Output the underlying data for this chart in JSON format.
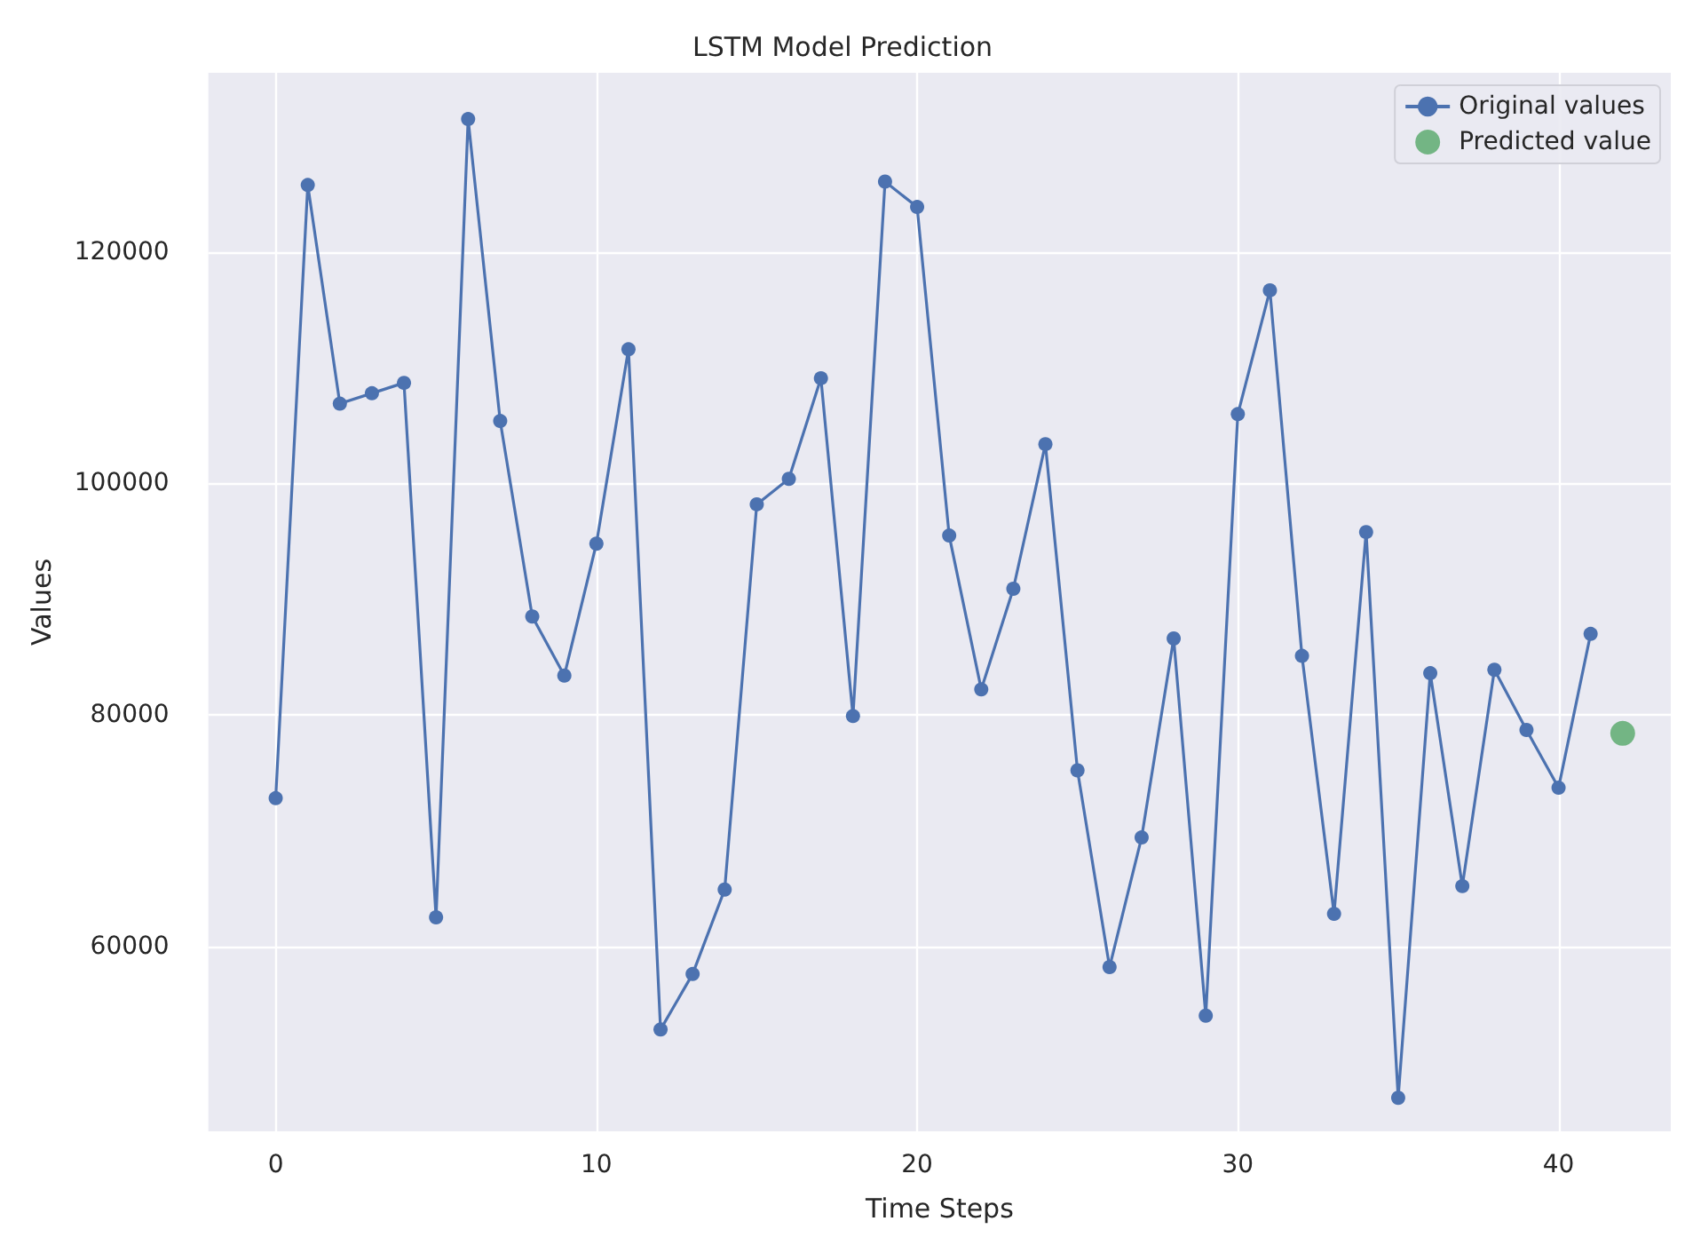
{
  "chart_data": {
    "type": "line",
    "title": "LSTM Model Prediction",
    "xlabel": "Time Steps",
    "ylabel": "Values",
    "xlim": [
      -2.1,
      43.5
    ],
    "xticks": [
      0,
      10,
      20,
      30,
      40
    ],
    "ylim": [
      44000,
      135500
    ],
    "yticks": [
      60000,
      80000,
      100000,
      120000
    ],
    "grid": true,
    "legend": "top right",
    "series": [
      {
        "name": "Original values",
        "color": "#4c72b0",
        "marker": "circle",
        "x": [
          0,
          1,
          2,
          3,
          4,
          5,
          6,
          7,
          8,
          9,
          10,
          11,
          12,
          13,
          14,
          15,
          16,
          17,
          18,
          19,
          20,
          21,
          22,
          23,
          24,
          25,
          26,
          27,
          28,
          29,
          30,
          31,
          32,
          33,
          34,
          35,
          36,
          37,
          38,
          39,
          40,
          41
        ],
        "values": [
          72800,
          125800,
          106900,
          107800,
          108700,
          62500,
          131500,
          105400,
          88500,
          83400,
          94800,
          111600,
          52800,
          57600,
          64900,
          98200,
          100400,
          109100,
          79900,
          126100,
          123900,
          95500,
          82200,
          90900,
          103400,
          75200,
          58200,
          69400,
          86600,
          54000,
          106000,
          116700,
          85100,
          62800,
          95800,
          46900,
          83600,
          65200,
          83900,
          78700,
          73700,
          87000
        ]
      },
      {
        "name": "Predicted value",
        "type": "scatter",
        "color": "#55a868",
        "marker": "circle",
        "x": [
          42
        ],
        "values": [
          78400
        ]
      }
    ]
  }
}
